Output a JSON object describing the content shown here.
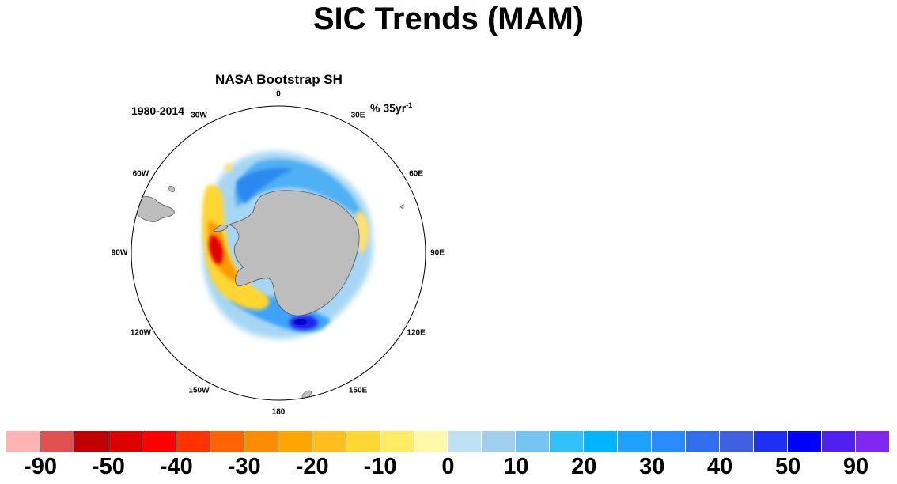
{
  "title": "SIC Trends (MAM)",
  "panel": {
    "title": "NASA Bootstrap SH",
    "period": "1980-2014",
    "units_base": "% 35yr",
    "units_exp": "-1",
    "longitudes": [
      "0",
      "30E",
      "60E",
      "90E",
      "120E",
      "150E",
      "180",
      "150W",
      "120W",
      "90W",
      "60W",
      "30W"
    ]
  },
  "colorbar": {
    "colors": [
      "#ffb3b3",
      "#e05050",
      "#c00000",
      "#dc0000",
      "#ff0000",
      "#ff3200",
      "#ff6400",
      "#ff8c00",
      "#ffa500",
      "#ffbe1e",
      "#ffd732",
      "#ffeb64",
      "#fffaaa",
      "#c0e0f4",
      "#a0d0ee",
      "#78c4f0",
      "#32c0f8",
      "#00b4ff",
      "#1ea0ff",
      "#2a8aff",
      "#326ef0",
      "#4060e0",
      "#2030f0",
      "#0000ff",
      "#5020f0",
      "#8028f0"
    ],
    "labels": [
      "-90",
      "-50",
      "-40",
      "-30",
      "-20",
      "-10",
      "0",
      "10",
      "20",
      "30",
      "40",
      "50",
      "90"
    ]
  }
}
